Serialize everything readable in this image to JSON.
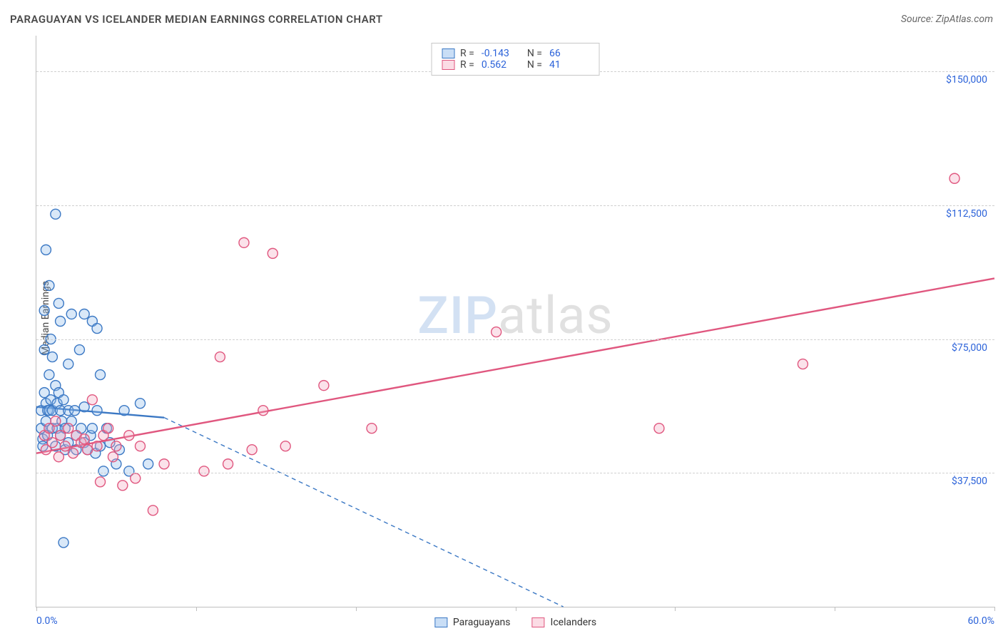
{
  "header": {
    "title": "PARAGUAYAN VS ICELANDER MEDIAN EARNINGS CORRELATION CHART",
    "source": "Source: ZipAtlas.com"
  },
  "yaxis": {
    "label": "Median Earnings"
  },
  "watermark": {
    "zip": "ZIP",
    "atlas": "atlas"
  },
  "chart": {
    "type": "scatter",
    "xlim": [
      0,
      60
    ],
    "ylim": [
      0,
      160000
    ],
    "x_unit": "%",
    "y_unit": "$",
    "xtick_positions": [
      0,
      10,
      20,
      30,
      40,
      50,
      60
    ],
    "ygrid": [
      {
        "value": 37500,
        "label": "$37,500"
      },
      {
        "value": 75000,
        "label": "$75,000"
      },
      {
        "value": 112500,
        "label": "$112,500"
      },
      {
        "value": 150000,
        "label": "$150,000"
      }
    ],
    "x_min_label": "0.0%",
    "x_max_label": "60.0%",
    "marker_radius": 7,
    "marker_stroke_width": 1.4,
    "marker_fill_opacity": 0.32,
    "trend_line_width": 2.4,
    "background_color": "#ffffff",
    "grid_color": "#d0d0d0",
    "axis_color": "#bfbfbf",
    "tick_color": "#2b62d9",
    "series": [
      {
        "key": "paraguayans",
        "label": "Paraguayans",
        "stroke": "#3b78c4",
        "fill": "#8ab6e8",
        "R": "-0.143",
        "N": "66",
        "trend": {
          "x1": 0,
          "y1": 56000,
          "x2": 8,
          "y2": 53000,
          "solid_until_x": 8,
          "dashed_to_x": 33,
          "dashed_to_y": 0
        },
        "points": [
          [
            0.3,
            55000
          ],
          [
            0.3,
            50000
          ],
          [
            0.4,
            47000
          ],
          [
            0.4,
            45000
          ],
          [
            0.5,
            83000
          ],
          [
            0.5,
            72000
          ],
          [
            0.5,
            60000
          ],
          [
            0.6,
            100000
          ],
          [
            0.6,
            57000
          ],
          [
            0.6,
            52000
          ],
          [
            0.7,
            55000
          ],
          [
            0.7,
            48000
          ],
          [
            0.8,
            90000
          ],
          [
            0.8,
            65000
          ],
          [
            0.8,
            55000
          ],
          [
            0.9,
            75000
          ],
          [
            0.9,
            58000
          ],
          [
            1.0,
            70000
          ],
          [
            1.0,
            55000
          ],
          [
            1.0,
            50000
          ],
          [
            1.2,
            110000
          ],
          [
            1.2,
            62000
          ],
          [
            1.2,
            45000
          ],
          [
            1.3,
            57000
          ],
          [
            1.3,
            50000
          ],
          [
            1.4,
            85000
          ],
          [
            1.4,
            60000
          ],
          [
            1.5,
            80000
          ],
          [
            1.5,
            55000
          ],
          [
            1.5,
            48000
          ],
          [
            1.6,
            52000
          ],
          [
            1.7,
            58000
          ],
          [
            1.8,
            50000
          ],
          [
            1.8,
            44000
          ],
          [
            2.0,
            68000
          ],
          [
            2.0,
            55000
          ],
          [
            2.0,
            46000
          ],
          [
            2.2,
            82000
          ],
          [
            2.2,
            52000
          ],
          [
            2.4,
            55000
          ],
          [
            2.5,
            48000
          ],
          [
            2.5,
            44000
          ],
          [
            2.7,
            72000
          ],
          [
            2.8,
            50000
          ],
          [
            3.0,
            82000
          ],
          [
            3.0,
            56000
          ],
          [
            3.0,
            46000
          ],
          [
            3.2,
            44000
          ],
          [
            3.4,
            48000
          ],
          [
            3.5,
            80000
          ],
          [
            3.5,
            50000
          ],
          [
            3.7,
            43000
          ],
          [
            3.8,
            55000
          ],
          [
            4.0,
            65000
          ],
          [
            4.0,
            45000
          ],
          [
            4.2,
            38000
          ],
          [
            4.4,
            50000
          ],
          [
            4.6,
            46000
          ],
          [
            5.0,
            40000
          ],
          [
            5.2,
            44000
          ],
          [
            5.5,
            55000
          ],
          [
            5.8,
            38000
          ],
          [
            1.7,
            18000
          ],
          [
            6.5,
            57000
          ],
          [
            7.0,
            40000
          ],
          [
            3.8,
            78000
          ]
        ]
      },
      {
        "key": "icelanders",
        "label": "Icelanders",
        "stroke": "#e0577f",
        "fill": "#f3a6bd",
        "R": "0.562",
        "N": "41",
        "trend": {
          "x1": 0,
          "y1": 43000,
          "x2": 60,
          "y2": 92000
        },
        "points": [
          [
            0.5,
            48000
          ],
          [
            0.6,
            44000
          ],
          [
            0.8,
            50000
          ],
          [
            1.0,
            46000
          ],
          [
            1.2,
            52000
          ],
          [
            1.4,
            42000
          ],
          [
            1.5,
            48000
          ],
          [
            1.8,
            45000
          ],
          [
            2.0,
            50000
          ],
          [
            2.3,
            43000
          ],
          [
            2.5,
            48000
          ],
          [
            2.8,
            46000
          ],
          [
            3.0,
            47000
          ],
          [
            3.2,
            44000
          ],
          [
            3.5,
            58000
          ],
          [
            3.8,
            45000
          ],
          [
            4.0,
            35000
          ],
          [
            4.2,
            48000
          ],
          [
            4.5,
            50000
          ],
          [
            4.8,
            42000
          ],
          [
            5.0,
            45000
          ],
          [
            5.4,
            34000
          ],
          [
            5.8,
            48000
          ],
          [
            6.2,
            36000
          ],
          [
            6.5,
            45000
          ],
          [
            7.3,
            27000
          ],
          [
            8.0,
            40000
          ],
          [
            10.5,
            38000
          ],
          [
            11.5,
            70000
          ],
          [
            12.0,
            40000
          ],
          [
            13.0,
            102000
          ],
          [
            14.2,
            55000
          ],
          [
            14.8,
            99000
          ],
          [
            15.6,
            45000
          ],
          [
            18.0,
            62000
          ],
          [
            21.0,
            50000
          ],
          [
            28.8,
            77000
          ],
          [
            39.0,
            50000
          ],
          [
            48.0,
            68000
          ],
          [
            57.5,
            120000
          ],
          [
            13.5,
            44000
          ]
        ]
      }
    ],
    "legend_top_labels": {
      "R": "R =",
      "N": "N ="
    }
  }
}
